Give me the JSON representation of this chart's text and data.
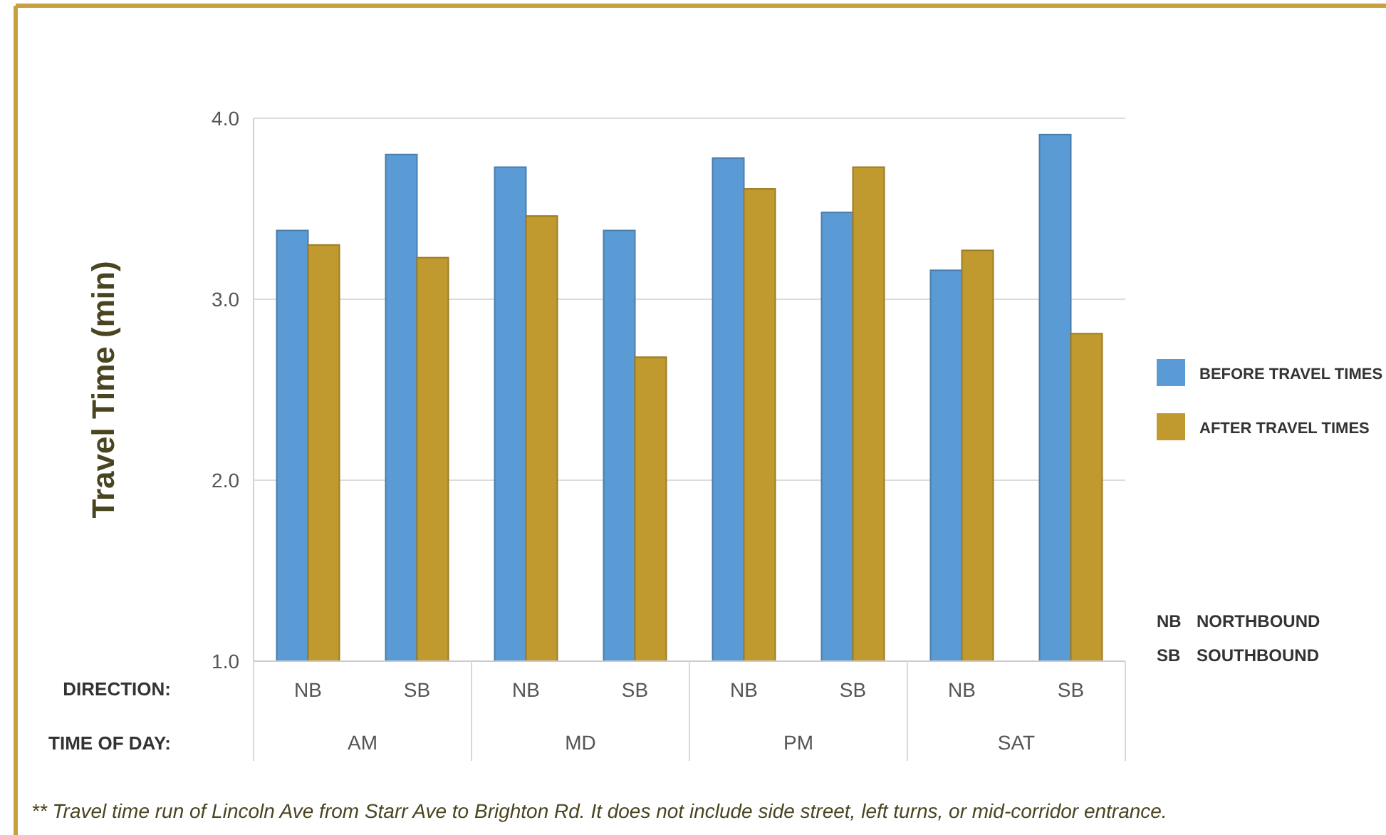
{
  "chart_data": {
    "type": "bar",
    "ylabel": "Travel Time (min)",
    "categories": [
      "NB",
      "SB",
      "NB",
      "SB",
      "NB",
      "SB",
      "NB",
      "SB"
    ],
    "series": [
      {
        "name": "BEFORE TRAVEL TIMES",
        "color": "#5b9bd5",
        "values": [
          3.38,
          3.8,
          3.73,
          3.38,
          3.78,
          3.48,
          3.16,
          3.91
        ]
      },
      {
        "name": "AFTER TRAVEL TIMES",
        "color": "#c09a2e",
        "values": [
          3.3,
          3.23,
          3.46,
          2.68,
          3.61,
          3.73,
          3.27,
          2.81
        ]
      }
    ],
    "ylim": [
      1,
      4
    ],
    "yticks": [
      {
        "value": 1,
        "label": "1.0"
      },
      {
        "value": 2,
        "label": "2.0"
      },
      {
        "value": 3,
        "label": "3.0"
      },
      {
        "value": 4,
        "label": "4.0"
      }
    ],
    "grid": "y",
    "legend": "right",
    "annotations": [
      "DIRECTION:",
      "TIME OF DAY:",
      "AM",
      "MD",
      "PM",
      "SAT",
      "NB",
      "NORTHBOUND",
      "SB",
      "SOUTHBOUND",
      "** Travel time run of Lincoln Ave from Starr Ave to Brighton Rd. It does not include side street, left turns, or mid-corridor entrance."
    ]
  }
}
